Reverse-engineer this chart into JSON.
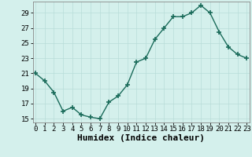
{
  "x": [
    0,
    1,
    2,
    3,
    4,
    5,
    6,
    7,
    8,
    9,
    10,
    11,
    12,
    13,
    14,
    15,
    16,
    17,
    18,
    19,
    20,
    21,
    22,
    23
  ],
  "y": [
    21,
    20,
    18.5,
    16,
    16.5,
    15.5,
    15.2,
    15,
    17.2,
    18,
    19.5,
    22.5,
    23,
    25.5,
    27,
    28.5,
    28.5,
    29,
    30,
    29,
    26.5,
    24.5,
    23.5,
    23
  ],
  "line_color": "#1a6b5a",
  "marker": "+",
  "marker_size": 4,
  "marker_linewidth": 1.2,
  "line_width": 1.0,
  "bg_color": "#d4f0ec",
  "grid_color": "#b8ddd8",
  "xlabel": "Humidex (Indice chaleur)",
  "xlabel_fontsize": 8,
  "yticks": [
    15,
    17,
    19,
    21,
    23,
    25,
    27,
    29
  ],
  "xticks": [
    0,
    1,
    2,
    3,
    4,
    5,
    6,
    7,
    8,
    9,
    10,
    11,
    12,
    13,
    14,
    15,
    16,
    17,
    18,
    19,
    20,
    21,
    22,
    23
  ],
  "ylim": [
    14.5,
    30.5
  ],
  "xlim": [
    -0.3,
    23.3
  ],
  "tick_fontsize": 6.5
}
